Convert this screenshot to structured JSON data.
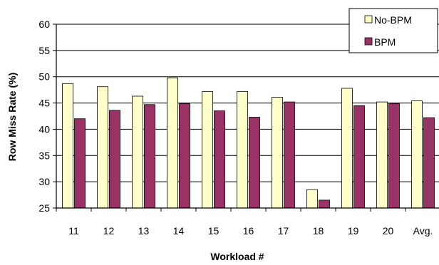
{
  "chart_data": {
    "type": "bar",
    "title": "",
    "xlabel": "Workload #",
    "ylabel": "Row Miss Rate (%)",
    "categories": [
      "11",
      "12",
      "13",
      "14",
      "15",
      "16",
      "17",
      "18",
      "19",
      "20",
      "Avg."
    ],
    "series": [
      {
        "name": "No-BPM",
        "color": "#ffffcc",
        "values": [
          48.7,
          48.1,
          46.3,
          49.8,
          47.2,
          47.2,
          46.1,
          28.5,
          47.8,
          45.2,
          45.4
        ]
      },
      {
        "name": "BPM",
        "color": "#993366",
        "values": [
          42.0,
          43.6,
          44.7,
          44.9,
          43.5,
          42.3,
          45.2,
          26.5,
          44.5,
          44.9,
          42.2
        ]
      }
    ],
    "ylim": [
      25,
      60
    ],
    "yticks": [
      25,
      30,
      35,
      40,
      45,
      50,
      55,
      60
    ],
    "grid": true,
    "legend": "top-right"
  }
}
